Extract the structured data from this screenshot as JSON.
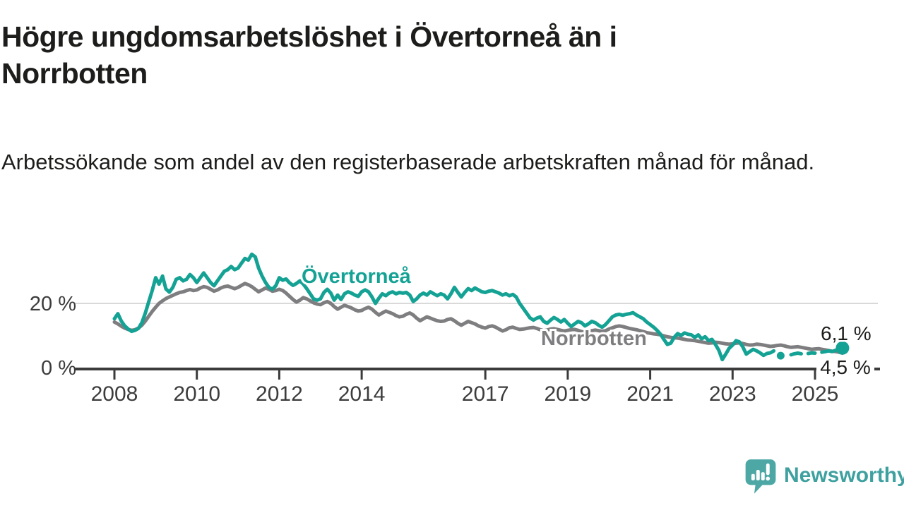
{
  "title": "Högre ungdomsarbetslöshet i Övertorneå än i Norrbotten",
  "subtitle": "Arbetssökande som andel av den registerbaserade arbetskraften månad för månad.",
  "footer": {
    "brand": "Newsworthy"
  },
  "colors": {
    "teal": "#14a294",
    "gray": "#7e7e80",
    "axis": "#3b3b3b",
    "grid": "#d9d9d9",
    "text": "#1d1d1b",
    "logo_teal": "#4ca7a5"
  },
  "chart_data": {
    "type": "line",
    "x_start": "2008-01",
    "x_end": "2025-09",
    "x_unit": "month",
    "ylim": [
      0,
      38
    ],
    "grid": "y-20-only",
    "y_ticks": [
      {
        "value": 0,
        "label": "0 %"
      },
      {
        "value": 20,
        "label": "20 %"
      }
    ],
    "x_ticks": [
      {
        "label": "2008",
        "month": 0
      },
      {
        "label": "2010",
        "month": 24
      },
      {
        "label": "2012",
        "month": 48
      },
      {
        "label": "2014",
        "month": 72
      },
      {
        "label": "2017",
        "month": 108
      },
      {
        "label": "2019",
        "month": 132
      },
      {
        "label": "2021",
        "month": 156
      },
      {
        "label": "2023",
        "month": 180
      },
      {
        "label": "2025",
        "month": 204
      }
    ],
    "series": [
      {
        "name": "Norrbotten",
        "color": "#7e7e80",
        "end_label": "4,5 %",
        "end_dot": false,
        "values": [
          14.2,
          13.6,
          12.9,
          12.3,
          11.9,
          11.6,
          11.8,
          12.3,
          13.2,
          14.5,
          16,
          17.5,
          18.8,
          20,
          20.8,
          21.5,
          22,
          22.5,
          23,
          23.4,
          23.6,
          24,
          24.3,
          24,
          24.2,
          24.8,
          25.2,
          25,
          24.4,
          23.8,
          24.2,
          24.8,
          25.2,
          25.4,
          25,
          24.6,
          25,
          25.6,
          26.2,
          25.8,
          25.2,
          24.4,
          23.6,
          24.2,
          24.8,
          24.4,
          23.8,
          24,
          24.4,
          24,
          23.2,
          22.2,
          21.2,
          20.4,
          21,
          21.8,
          21.4,
          20.8,
          20.2,
          19.8,
          19.6,
          20.2,
          20.6,
          20,
          19,
          18.2,
          18.8,
          19.4,
          19,
          18.6,
          18,
          17.6,
          17.8,
          18.4,
          18.8,
          18.2,
          17.2,
          16.4,
          17,
          17.6,
          17.2,
          16.8,
          16.2,
          15.8,
          16,
          16.6,
          17,
          16.4,
          15.4,
          14.6,
          15.2,
          15.8,
          15.4,
          15,
          14.6,
          14.4,
          14.5,
          15,
          15.2,
          14.6,
          13.8,
          13.2,
          13.8,
          14.4,
          14,
          13.6,
          13,
          12.6,
          12.3,
          12.8,
          13,
          12.6,
          12,
          11.4,
          11.8,
          12.4,
          12.6,
          12.2,
          11.9,
          12,
          12.2,
          12.4,
          12.5,
          12.2,
          11.8,
          11.5,
          11.7,
          12,
          12.1,
          11.9,
          11.6,
          11.4,
          11.6,
          11.8,
          11.9,
          11.6,
          11.2,
          11,
          11.2,
          11.5,
          11.7,
          11.5,
          11.3,
          11.5,
          12,
          12.4,
          12.8,
          13,
          12.8,
          12.5,
          12.2,
          12,
          11.8,
          11.5,
          11.2,
          10.9,
          10.7,
          10.5,
          10.4,
          10.2,
          9.9,
          9.6,
          9.4,
          9.3,
          9.2,
          9,
          8.8,
          8.6,
          8.5,
          8.4,
          8.2,
          8,
          7.8,
          7.6,
          7.7,
          7.9,
          7.8,
          7.6,
          7.4,
          7.3,
          7.4,
          7.6,
          7.7,
          7.5,
          7.2,
          7,
          7.1,
          7.3,
          7.2,
          7,
          6.8,
          6.6,
          6.7,
          6.9,
          7,
          6.8,
          6.5,
          6.3,
          6.4,
          6.5,
          6.3,
          6.1,
          5.9,
          5.7,
          5.8,
          5.9,
          5.7,
          5.5,
          5.3,
          5.1,
          5,
          4.8,
          4.5
        ]
      },
      {
        "name": "Övertorneå",
        "color": "#14a294",
        "end_label": "6,1 %",
        "end_dot": true,
        "values": [
          15.2,
          16.8,
          14.5,
          13,
          12,
          11.3,
          11.6,
          12.2,
          14,
          17,
          20.5,
          24,
          28,
          26,
          28.5,
          24.5,
          23.5,
          25,
          27.5,
          28,
          27,
          27.5,
          29,
          28,
          26.5,
          28,
          29.5,
          28,
          26.5,
          25.5,
          27,
          28.5,
          30,
          30.5,
          31.5,
          30.5,
          31,
          32.5,
          34,
          33.5,
          35.3,
          34.5,
          31,
          28.5,
          26.5,
          25,
          24.4,
          25.5,
          28,
          27.2,
          27.6,
          26.4,
          25.6,
          26.2,
          27,
          26,
          24.6,
          23,
          21.4,
          21,
          21.4,
          23.4,
          24.4,
          23.2,
          21,
          22.6,
          21.2,
          23,
          23.6,
          23.2,
          22.6,
          22.2,
          23.6,
          24.2,
          23.6,
          22,
          20,
          21.6,
          23,
          22.4,
          23.2,
          23.6,
          23,
          23.4,
          23.2,
          23.4,
          22.6,
          20.6,
          21.4,
          22.6,
          23.2,
          22.6,
          23.6,
          23,
          22.4,
          23,
          22.6,
          21.4,
          23,
          25,
          23.4,
          22,
          23.4,
          24.6,
          24,
          24.8,
          24.2,
          23.6,
          23.4,
          23.8,
          24,
          23.6,
          23.2,
          22.6,
          23,
          22.4,
          22.8,
          22,
          20,
          18.5,
          17,
          15.5,
          14.8,
          15.4,
          15.8,
          14.4,
          13.8,
          14.8,
          15.6,
          15,
          14.2,
          15,
          13.8,
          12.8,
          13.6,
          14.4,
          14,
          13,
          13.6,
          14.4,
          14,
          13.2,
          12.6,
          13.4,
          14.6,
          15.8,
          16.4,
          16.6,
          16.3,
          16.6,
          16.8,
          17.1,
          16.4,
          15.8,
          15.2,
          14.2,
          13.4,
          12.6,
          11.6,
          10.4,
          8.8,
          7.2,
          7.6,
          9.4,
          10.6,
          10,
          10.8,
          10.4,
          10.2,
          9.4,
          10.2,
          9,
          9.6,
          8.4,
          8.8,
          7.2,
          5.4,
          2.5,
          4.2,
          6,
          7,
          8.4,
          8,
          6.4,
          4.2,
          5,
          5.7,
          5.2,
          4.6,
          3.8,
          4.4,
          4.6,
          5.2,
          null,
          3.7,
          null,
          null,
          4,
          4.3,
          4.5,
          4.3,
          null,
          4.4,
          4.6,
          4.5,
          null,
          4.8,
          5,
          5.2,
          5,
          5.4,
          5.7,
          6.1
        ]
      }
    ],
    "legend_position": "inline-labels"
  }
}
